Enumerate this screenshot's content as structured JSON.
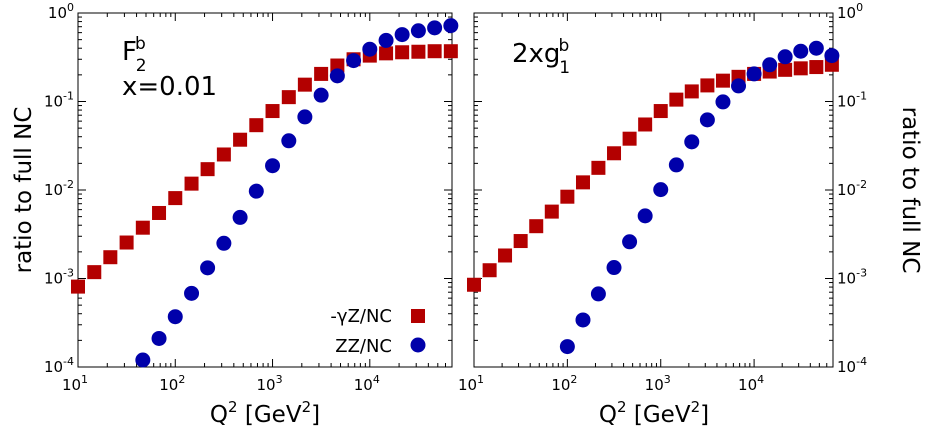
{
  "chart_data": [
    {
      "type": "scatter",
      "panel_label": "F",
      "panel_label_sup": "b",
      "panel_label_sub": "2",
      "panel_sublabel": "x=0.01",
      "xlabel": "Q",
      "xlabel_sup": "2",
      "xlabel_unit": "[GeV",
      "xlabel_unit_sup": "2",
      "xlabel_unit_end": "]",
      "ylabel": "ratio to full NC",
      "x_scale": "log",
      "y_scale": "log",
      "xlim": [
        10,
        70000
      ],
      "ylim": [
        0.0001,
        1
      ],
      "x_ticks": [
        {
          "v": 10,
          "base": "10",
          "exp": "1"
        },
        {
          "v": 100,
          "base": "10",
          "exp": "2"
        },
        {
          "v": 1000,
          "base": "10",
          "exp": "3"
        },
        {
          "v": 10000,
          "base": "10",
          "exp": "4"
        }
      ],
      "y_ticks": [
        {
          "v": 0.0001,
          "base": "10",
          "exp": "-4"
        },
        {
          "v": 0.001,
          "base": "10",
          "exp": "-3"
        },
        {
          "v": 0.01,
          "base": "10",
          "exp": "-2"
        },
        {
          "v": 0.1,
          "base": "10",
          "exp": "-1"
        },
        {
          "v": 1,
          "base": "10",
          "exp": "0"
        }
      ],
      "legend_position": "bottom-right",
      "series": [
        {
          "name": "-γZ/NC",
          "marker": "square",
          "color": "#b30000",
          "x": [
            10,
            14.7,
            21.5,
            31.6,
            46.4,
            68.1,
            100,
            147,
            215,
            316,
            464,
            681,
            1000,
            1470,
            2150,
            3160,
            4640,
            6810,
            10000,
            14700,
            21500,
            31600,
            46400,
            68100
          ],
          "y": [
            0.00081,
            0.00118,
            0.00174,
            0.00255,
            0.00375,
            0.0055,
            0.0081,
            0.0118,
            0.0172,
            0.0252,
            0.037,
            0.054,
            0.078,
            0.112,
            0.155,
            0.205,
            0.255,
            0.3,
            0.33,
            0.35,
            0.36,
            0.365,
            0.37,
            0.37
          ]
        },
        {
          "name": "ZZ/NC",
          "marker": "circle",
          "color": "#0000aa",
          "x": [
            46.4,
            68.1,
            100,
            147,
            215,
            316,
            464,
            681,
            1000,
            1470,
            2150,
            3160,
            4640,
            6810,
            10000,
            14700,
            21500,
            31600,
            46400,
            68100
          ],
          "y": [
            0.00012,
            0.00021,
            0.00037,
            0.00068,
            0.00132,
            0.0025,
            0.0049,
            0.0097,
            0.0188,
            0.036,
            0.067,
            0.118,
            0.195,
            0.29,
            0.39,
            0.49,
            0.57,
            0.63,
            0.68,
            0.72
          ]
        }
      ]
    },
    {
      "type": "scatter",
      "panel_label": "2xg",
      "panel_label_sup": "b",
      "panel_label_sub": "1",
      "xlabel": "Q",
      "xlabel_sup": "2",
      "xlabel_unit": "[GeV",
      "xlabel_unit_sup": "2",
      "xlabel_unit_end": "]",
      "ylabel": "ratio to full NC",
      "x_scale": "log",
      "y_scale": "log",
      "xlim": [
        10,
        70000
      ],
      "ylim": [
        0.0001,
        1
      ],
      "x_ticks": [
        {
          "v": 10,
          "base": "10",
          "exp": "1"
        },
        {
          "v": 100,
          "base": "10",
          "exp": "2"
        },
        {
          "v": 1000,
          "base": "10",
          "exp": "3"
        },
        {
          "v": 10000,
          "base": "10",
          "exp": "4"
        }
      ],
      "y_ticks": [
        {
          "v": 0.0001,
          "base": "10",
          "exp": "-4"
        },
        {
          "v": 0.001,
          "base": "10",
          "exp": "-3"
        },
        {
          "v": 0.01,
          "base": "10",
          "exp": "-2"
        },
        {
          "v": 0.1,
          "base": "10",
          "exp": "-1"
        },
        {
          "v": 1,
          "base": "10",
          "exp": "0"
        }
      ],
      "series": [
        {
          "name": "-γZ/NC",
          "marker": "square",
          "color": "#b30000",
          "x": [
            10,
            14.7,
            21.5,
            31.6,
            46.4,
            68.1,
            100,
            147,
            215,
            316,
            464,
            681,
            1000,
            1470,
            2150,
            3160,
            4640,
            6810,
            10000,
            14700,
            21500,
            31600,
            46400,
            68100
          ],
          "y": [
            0.00085,
            0.00124,
            0.00182,
            0.00265,
            0.0039,
            0.0057,
            0.0084,
            0.0122,
            0.0178,
            0.026,
            0.038,
            0.055,
            0.078,
            0.105,
            0.13,
            0.152,
            0.172,
            0.19,
            0.205,
            0.218,
            0.228,
            0.237,
            0.245,
            0.26
          ]
        },
        {
          "name": "ZZ/NC",
          "marker": "circle",
          "color": "#0000aa",
          "x": [
            100,
            147,
            215,
            316,
            464,
            681,
            1000,
            1470,
            2150,
            3160,
            4640,
            6810,
            10000,
            14700,
            21500,
            31600,
            46400,
            68100
          ],
          "y": [
            0.00017,
            0.00034,
            0.00067,
            0.00133,
            0.0026,
            0.0051,
            0.0101,
            0.0192,
            0.035,
            0.062,
            0.099,
            0.15,
            0.205,
            0.26,
            0.32,
            0.37,
            0.4,
            0.33
          ]
        }
      ]
    }
  ]
}
